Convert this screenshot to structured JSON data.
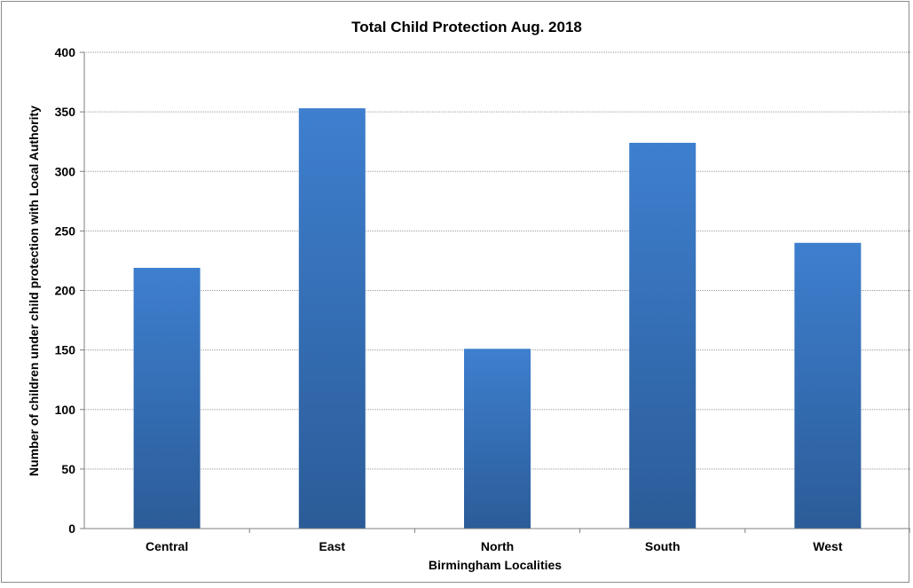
{
  "chart_data": {
    "type": "bar",
    "title": "Total Child Protection Aug. 2018",
    "xlabel": "Birmingham Localities",
    "ylabel": "Number of children under child protection with Local Authority",
    "categories": [
      "Central",
      "East",
      "North",
      "South",
      "West"
    ],
    "values": [
      219,
      353,
      151,
      324,
      240
    ],
    "ylim": [
      0,
      400
    ],
    "yticks": [
      0,
      50,
      100,
      150,
      200,
      250,
      300,
      350,
      400
    ],
    "grid": true,
    "legend": "none",
    "colors": {
      "bar_top": "#3e7fcf",
      "bar_bottom": "#2b5c98",
      "grid": "#9a9a9a",
      "axis": "#7f7f7f"
    }
  }
}
